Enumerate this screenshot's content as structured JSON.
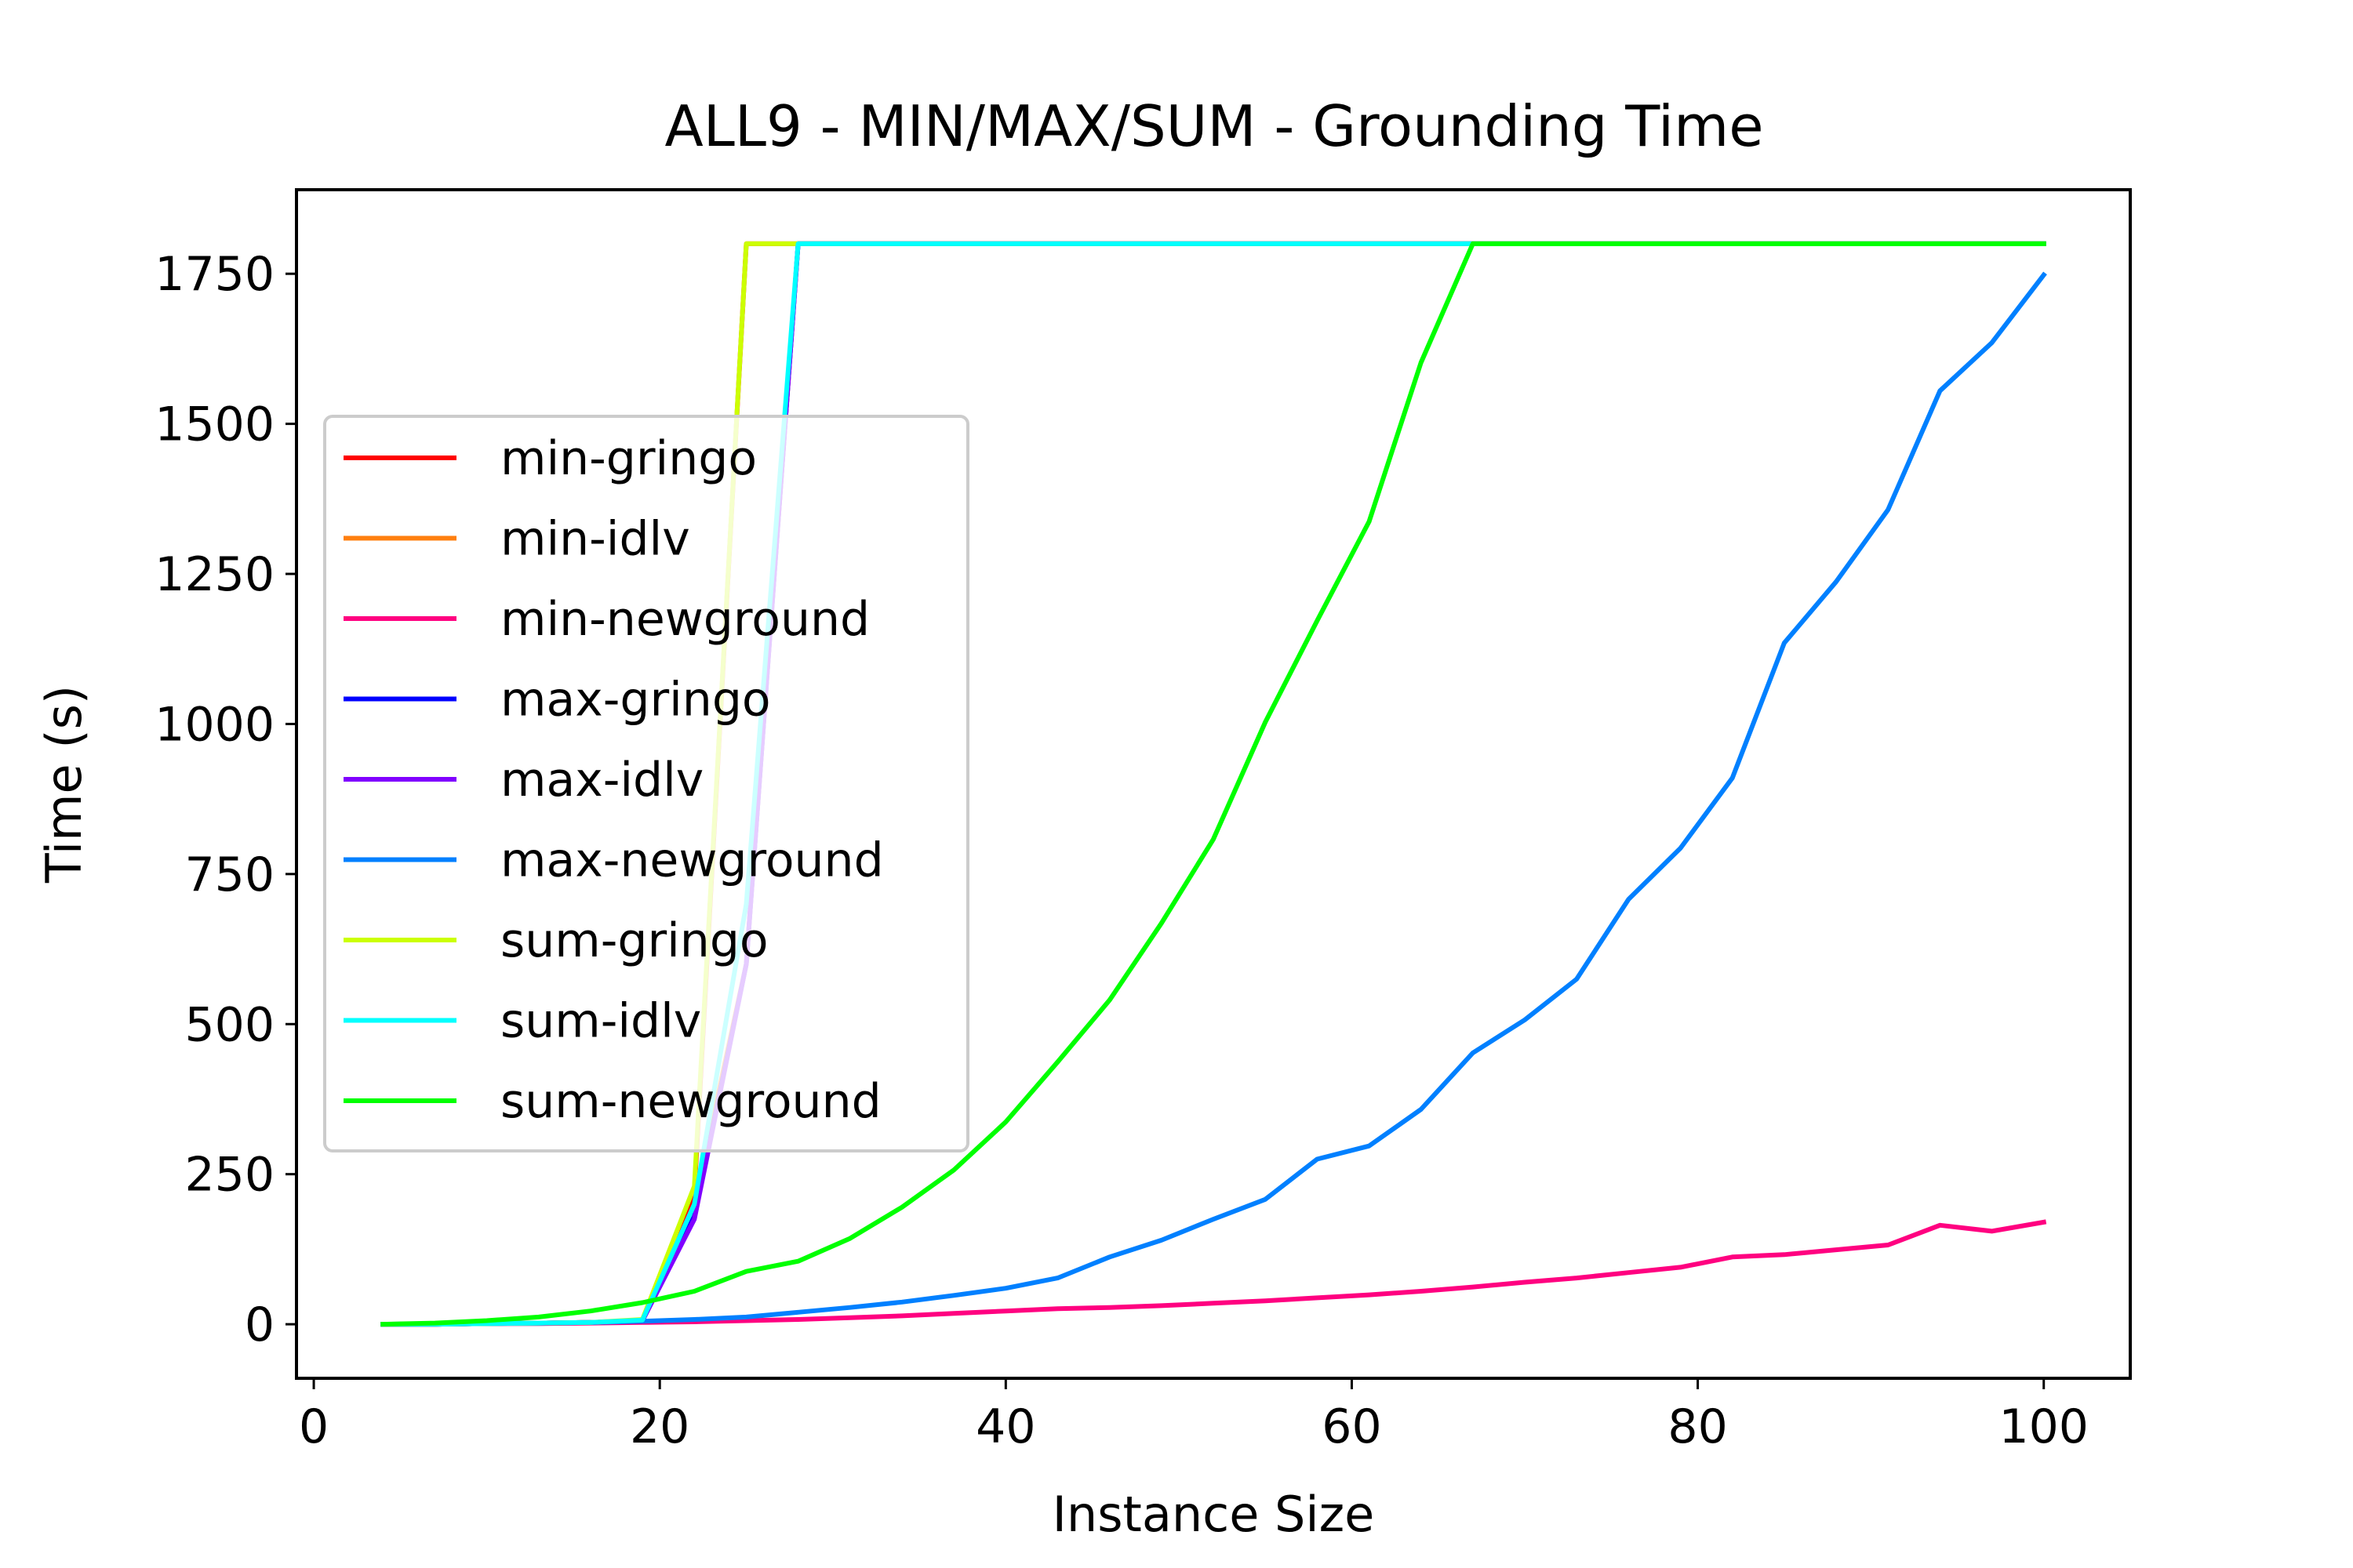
{
  "chart_data": {
    "type": "line",
    "title": "ALL9 - MIN/MAX/SUM - Grounding Time",
    "xlabel": "Instance Size",
    "ylabel": "Time (s)",
    "xlim": [
      -1,
      105
    ],
    "ylim": [
      -90,
      1890
    ],
    "xticks": [
      0,
      20,
      40,
      60,
      80,
      100
    ],
    "yticks": [
      0,
      250,
      500,
      750,
      1000,
      1250,
      1500,
      1750
    ],
    "grid": false,
    "legend_position": "center-left",
    "series": [
      {
        "name": "min-gringo",
        "color": "#ff0000",
        "x": [
          4,
          7,
          10,
          13,
          16,
          19,
          22,
          25,
          28,
          100
        ],
        "y": [
          0,
          0,
          1,
          2,
          3,
          6,
          220,
          1800,
          1800,
          1800
        ]
      },
      {
        "name": "min-idlv",
        "color": "#ff7f0e",
        "x": [
          4,
          7,
          10,
          13,
          16,
          19,
          22,
          25,
          28,
          100
        ],
        "y": [
          0,
          0,
          1,
          2,
          3,
          6,
          200,
          600,
          1800,
          1800
        ]
      },
      {
        "name": "min-newground",
        "color": "#ff0080",
        "x": [
          4,
          7,
          10,
          13,
          16,
          19,
          22,
          25,
          28,
          31,
          34,
          37,
          40,
          43,
          46,
          49,
          52,
          55,
          58,
          61,
          64,
          67,
          70,
          73,
          76,
          79,
          82,
          85,
          88,
          91,
          94,
          97,
          100
        ],
        "y": [
          0,
          0,
          1,
          1,
          2,
          3,
          4,
          6,
          8,
          11,
          14,
          18,
          22,
          26,
          28,
          31,
          35,
          39,
          44,
          49,
          55,
          62,
          70,
          77,
          86,
          95,
          112,
          116,
          124,
          132,
          165,
          155,
          170
        ]
      },
      {
        "name": "max-gringo",
        "color": "#0000ff",
        "x": [
          4,
          7,
          10,
          13,
          16,
          19,
          22,
          25,
          28,
          100
        ],
        "y": [
          0,
          0,
          1,
          2,
          3,
          6,
          180,
          600,
          1800,
          1800
        ]
      },
      {
        "name": "max-idlv",
        "color": "#8000ff",
        "x": [
          4,
          7,
          10,
          13,
          16,
          19,
          22,
          25,
          28,
          100
        ],
        "y": [
          0,
          0,
          1,
          2,
          3,
          6,
          175,
          600,
          1800,
          1800
        ]
      },
      {
        "name": "max-newground",
        "color": "#0080ff",
        "x": [
          4,
          7,
          10,
          13,
          16,
          19,
          22,
          25,
          28,
          31,
          34,
          37,
          40,
          43,
          46,
          49,
          52,
          55,
          58,
          61,
          64,
          67,
          70,
          73,
          76,
          79,
          82,
          85,
          88,
          91,
          94,
          97,
          100
        ],
        "y": [
          0,
          1,
          1,
          2,
          3,
          5,
          8,
          12,
          20,
          28,
          37,
          48,
          60,
          77,
          112,
          140,
          175,
          208,
          275,
          297,
          358,
          452,
          507,
          575,
          708,
          793,
          910,
          1135,
          1237,
          1357,
          1555,
          1635,
          1748
        ]
      },
      {
        "name": "sum-gringo",
        "color": "#ccff00",
        "x": [
          4,
          7,
          10,
          13,
          16,
          19,
          22,
          25,
          28,
          100
        ],
        "y": [
          0,
          0,
          1,
          2,
          3,
          8,
          230,
          1800,
          1800,
          1800
        ]
      },
      {
        "name": "sum-idlv",
        "color": "#00ffff",
        "x": [
          4,
          7,
          10,
          13,
          16,
          19,
          22,
          25,
          28,
          100
        ],
        "y": [
          0,
          0,
          1,
          2,
          3,
          7,
          200,
          700,
          1800,
          1800
        ]
      },
      {
        "name": "sum-newground",
        "color": "#00ff00",
        "x": [
          4,
          7,
          10,
          13,
          16,
          19,
          22,
          25,
          28,
          31,
          34,
          37,
          40,
          43,
          46,
          49,
          52,
          55,
          58,
          61,
          64,
          67,
          100
        ],
        "y": [
          0,
          2,
          6,
          12,
          22,
          36,
          55,
          88,
          105,
          143,
          195,
          257,
          337,
          437,
          540,
          668,
          808,
          1003,
          1172,
          1337,
          1602,
          1800,
          1800
        ]
      }
    ]
  }
}
